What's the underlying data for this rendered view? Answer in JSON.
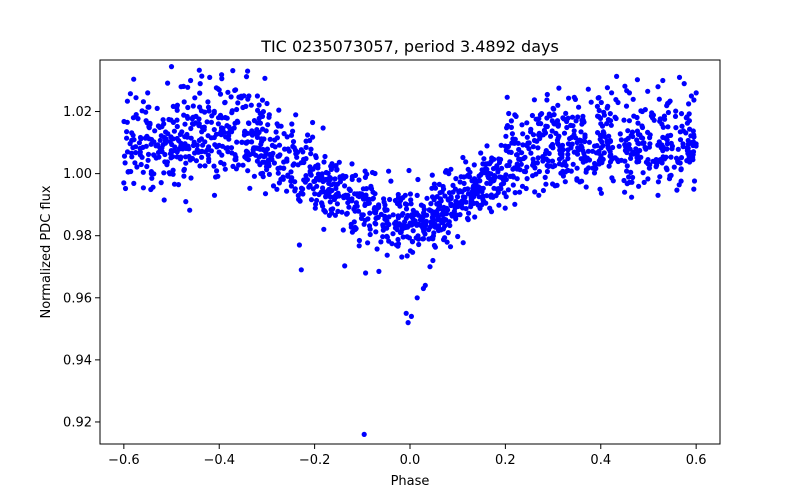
{
  "chart_data": {
    "type": "scatter",
    "title": "TIC 0235073057, period 3.4892 days",
    "xlabel": "Phase",
    "ylabel": "Normalized PDC flux",
    "xlim": [
      -0.65,
      0.65
    ],
    "ylim": [
      0.9129,
      1.0366
    ],
    "xticks": [
      -0.6,
      -0.4,
      -0.2,
      0.0,
      0.2,
      0.4,
      0.6
    ],
    "xtick_labels": [
      "−0.6",
      "−0.4",
      "−0.2",
      "0.0",
      "0.2",
      "0.4",
      "0.6"
    ],
    "yticks": [
      0.92,
      0.94,
      0.96,
      0.98,
      1.0,
      1.02
    ],
    "ytick_labels": [
      "0.92",
      "0.94",
      "0.96",
      "0.98",
      "1.00",
      "1.02"
    ],
    "grid": false,
    "marker_color": "#0000ff",
    "series": [
      {
        "name": "PDC flux",
        "trend": {
          "phase": [
            -0.6,
            -0.5,
            -0.45,
            -0.4,
            -0.35,
            -0.3,
            -0.25,
            -0.2,
            -0.15,
            -0.1,
            -0.05,
            0.0,
            0.05,
            0.1,
            0.15,
            0.2,
            0.25,
            0.3,
            0.35,
            0.4,
            0.45,
            0.5,
            0.55,
            0.6
          ],
          "flux": [
            1.006,
            1.007,
            1.008,
            1.009,
            1.01,
            1.007,
            1.002,
            0.997,
            0.994,
            0.99,
            0.986,
            0.984,
            0.987,
            0.991,
            0.996,
            1.0,
            1.003,
            1.005,
            1.006,
            1.007,
            1.007,
            1.006,
            1.006,
            1.005
          ],
          "scatter_sigma": 0.0055,
          "n_points": 1600
        },
        "points": [
          {
            "x": -0.096,
            "y": 0.916
          },
          {
            "x": -0.093,
            "y": 0.968
          },
          {
            "x": -0.228,
            "y": 0.969
          },
          {
            "x": -0.232,
            "y": 0.977
          },
          {
            "x": -0.004,
            "y": 0.952
          },
          {
            "x": 0.003,
            "y": 0.954
          },
          {
            "x": -0.008,
            "y": 0.955
          },
          {
            "x": 0.015,
            "y": 0.96
          },
          {
            "x": 0.028,
            "y": 0.963
          },
          {
            "x": 0.032,
            "y": 0.964
          },
          {
            "x": 0.042,
            "y": 0.97
          },
          {
            "x": 0.048,
            "y": 0.972
          },
          {
            "x": -0.002,
            "y": 1.001
          },
          {
            "x": -0.42,
            "y": 1.031
          },
          {
            "x": -0.46,
            "y": 1.03
          },
          {
            "x": -0.48,
            "y": 1.028
          },
          {
            "x": -0.44,
            "y": 1.029
          },
          {
            "x": -0.4,
            "y": 1.027
          },
          {
            "x": -0.34,
            "y": 1.024
          },
          {
            "x": -0.32,
            "y": 1.025
          },
          {
            "x": -0.55,
            "y": 1.026
          },
          {
            "x": -0.53,
            "y": 1.021
          },
          {
            "x": -0.58,
            "y": 1.018
          },
          {
            "x": -0.6,
            "y": 0.997
          },
          {
            "x": -0.47,
            "y": 0.991
          },
          {
            "x": -0.41,
            "y": 0.993
          },
          {
            "x": 0.3,
            "y": 1.021
          },
          {
            "x": 0.31,
            "y": 1.022
          },
          {
            "x": 0.38,
            "y": 1.023
          },
          {
            "x": 0.46,
            "y": 1.026
          },
          {
            "x": 0.52,
            "y": 1.028
          },
          {
            "x": 0.53,
            "y": 1.03
          },
          {
            "x": 0.565,
            "y": 1.031
          },
          {
            "x": 0.575,
            "y": 1.029
          },
          {
            "x": 0.59,
            "y": 1.025
          },
          {
            "x": 0.6,
            "y": 1.026
          },
          {
            "x": 0.595,
            "y": 0.995
          },
          {
            "x": 0.52,
            "y": 0.993
          },
          {
            "x": 0.45,
            "y": 0.994
          },
          {
            "x": 0.27,
            "y": 0.993
          }
        ]
      }
    ]
  }
}
